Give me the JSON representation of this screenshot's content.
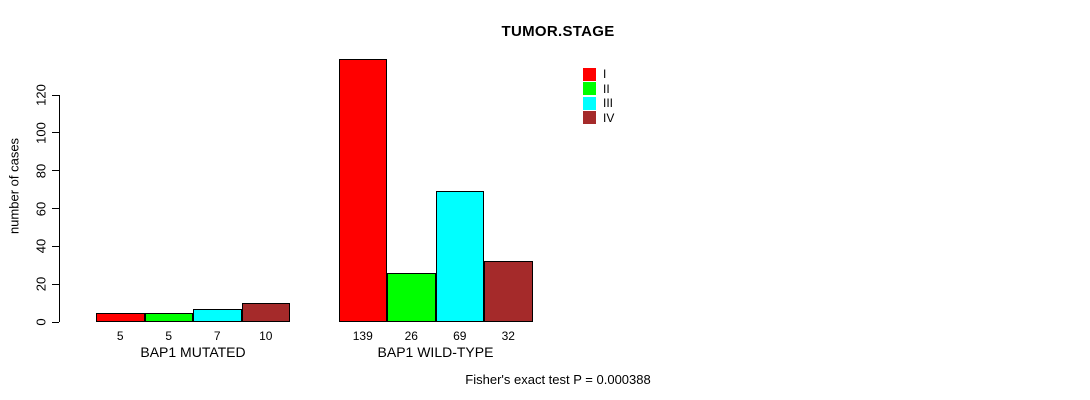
{
  "chart_data": {
    "type": "bar",
    "title": "TUMOR.STAGE",
    "xlabel": "",
    "ylabel": "number of cases",
    "yticks": [
      0,
      20,
      40,
      60,
      80,
      100,
      120
    ],
    "ylim": [
      0,
      145
    ],
    "grid": false,
    "background": "#FFFFFF",
    "bar_border_color": "#000000",
    "legend_position": "top-right-inside",
    "series_labels": [
      "I",
      "II",
      "III",
      "IV"
    ],
    "colors": [
      "#FF0000",
      "#00FF00",
      "#00FFFF",
      "#A52A2A"
    ],
    "groups": [
      {
        "label": "BAP1 MUTATED",
        "values": [
          5,
          5,
          7,
          10
        ]
      },
      {
        "label": "BAP1 WILD-TYPE",
        "values": [
          139,
          26,
          69,
          32
        ]
      }
    ],
    "annotation": "Fisher's exact test P = 0.000388"
  }
}
